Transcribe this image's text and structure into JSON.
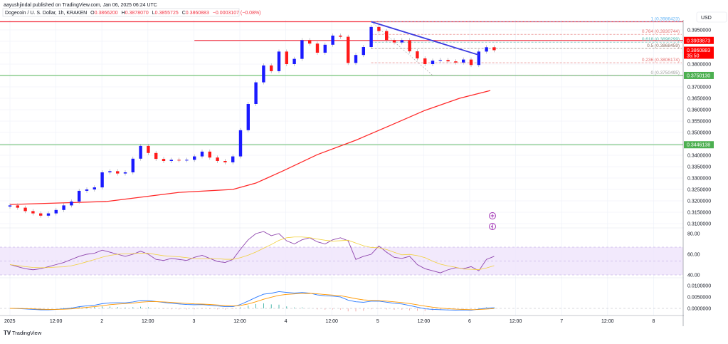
{
  "header": {
    "published": "aayushjindal published on TradingView.com, Jan 06, 2025 06:24 UTC"
  },
  "legend": {
    "symbol": "Dogecoin / U. S. Dollar, 1h, KRAKEN",
    "o_label": "O",
    "o": "0.3866200",
    "h_label": "H",
    "h": "0.3878070",
    "l_label": "L",
    "l": "0.3855725",
    "c_label": "C",
    "c": "0.3860883",
    "change": "−0.0003107 (−0.08%)"
  },
  "currency": "USD",
  "colors": {
    "up": "#1a1aff",
    "down": "#ff1a1a",
    "ma": "#ff2a2a",
    "support": "#81c784",
    "resistance": "#f23645",
    "trend": "#3a3ae0",
    "rsi": "#8e44ad",
    "rsi_ma": "#f2d03b",
    "macd": "#2979ff",
    "signal": "#ff9800"
  },
  "price_ticks": [
    "0.3950000",
    "0.3800000",
    "0.3700000",
    "0.3650000",
    "0.3600000",
    "0.3550000",
    "0.3500000",
    "0.3400000",
    "0.3350000",
    "0.3300000",
    "0.3250000",
    "0.3200000",
    "0.3150000",
    "0.3100000"
  ],
  "price_badges": [
    {
      "label": "0.3903873",
      "price": 0.3903873,
      "kind": "red"
    },
    {
      "label": "0.3860883",
      "sub": "35:50",
      "price": 0.3860883,
      "kind": "red"
    },
    {
      "label": "0.3750130",
      "price": 0.375013,
      "kind": "green"
    },
    {
      "label": "0.3446138",
      "price": 0.3446138,
      "kind": "green"
    }
  ],
  "rsi_ticks": [
    "80.00",
    "60.00",
    "40.00"
  ],
  "macd_ticks": [
    "0.0100000",
    "0.0050000",
    "0.0000000"
  ],
  "time_labels": [
    "2025",
    "12:00",
    "2",
    "12:00",
    "3",
    "12:00",
    "4",
    "12:00",
    "5",
    "12:00",
    "6",
    "12:00",
    "7",
    "12:00",
    "8"
  ],
  "fib_levels": [
    {
      "label": "1 (0.3986423)",
      "price": 0.3986423,
      "color": "#64b5f6"
    },
    {
      "label": "0.764 (0.3930744)",
      "price": 0.3930744,
      "color": "#e57373"
    },
    {
      "label": "0.618 (0.3896299)",
      "price": 0.3896299,
      "color": "#4db6ac"
    },
    {
      "label": "0.5 (0.3868459)",
      "price": 0.3868459,
      "color": "#8d6e63"
    },
    {
      "label": "0.236 (0.3806174)",
      "price": 0.3806174,
      "color": "#e57373"
    },
    {
      "label": "0 (0.3750495)",
      "price": 0.3750495,
      "color": "#9e9e9e"
    }
  ],
  "logo": "TradingView",
  "chart_data": {
    "type": "candlestick",
    "title": "Dogecoin / U. S. Dollar, 1h, KRAKEN",
    "candle_interval_hours": 2,
    "start": "2025-01-01 00:00",
    "first_open": 0.3175,
    "closes": [
      0.318,
      0.317,
      0.3155,
      0.3145,
      0.3135,
      0.3145,
      0.316,
      0.318,
      0.3197,
      0.3244,
      0.325,
      0.3259,
      0.3325,
      0.333,
      0.332,
      0.3325,
      0.3385,
      0.3441,
      0.341,
      0.3384,
      0.3375,
      0.338,
      0.3378,
      0.338,
      0.3395,
      0.3416,
      0.339,
      0.3375,
      0.3369,
      0.3395,
      0.351,
      0.3625,
      0.372,
      0.3794,
      0.3769,
      0.3855,
      0.38,
      0.3823,
      0.3905,
      0.389,
      0.385,
      0.3885,
      0.3925,
      0.392,
      0.3805,
      0.384,
      0.3875,
      0.3963,
      0.3945,
      0.3905,
      0.3895,
      0.3905,
      0.3856,
      0.3825,
      0.38,
      0.3815,
      0.3818,
      0.3812,
      0.3807,
      0.382,
      0.3796,
      0.3855,
      0.3874,
      0.3861
    ],
    "moving_average": {
      "hours": [
        0,
        25,
        44,
        58,
        64,
        71,
        80,
        90,
        99,
        108,
        117,
        125
      ],
      "values": [
        0.3184,
        0.3197,
        0.3237,
        0.325,
        0.3278,
        0.3331,
        0.3403,
        0.3466,
        0.3531,
        0.3597,
        0.365,
        0.3684
      ]
    },
    "horizontal_lines": [
      {
        "price": 0.3986,
        "color": "red",
        "from_hour": 0
      },
      {
        "price": 0.3903873,
        "color": "red",
        "from_hour": 48
      },
      {
        "price": 0.375013,
        "color": "green",
        "from_hour": 0
      },
      {
        "price": 0.3446138,
        "color": "green",
        "from_hour": 0
      }
    ],
    "trend_line": {
      "from": [
        94,
        0.3986
      ],
      "to": [
        122,
        0.384
      ]
    },
    "rsi": [
      50,
      48,
      46,
      45,
      46,
      48,
      50,
      52,
      55,
      58,
      60,
      61,
      64,
      62,
      60,
      58,
      60,
      63,
      60,
      55,
      54,
      56,
      55,
      54,
      57,
      59,
      56,
      53,
      52,
      55,
      65,
      74,
      80,
      82,
      78,
      80,
      73,
      70,
      74,
      76,
      72,
      70,
      74,
      76,
      73,
      55,
      58,
      60,
      68,
      62,
      57,
      56,
      58,
      50,
      46,
      44,
      42,
      45,
      47,
      46,
      48,
      44,
      55,
      58
    ],
    "y_range": [
      0.31,
      0.3986
    ]
  }
}
